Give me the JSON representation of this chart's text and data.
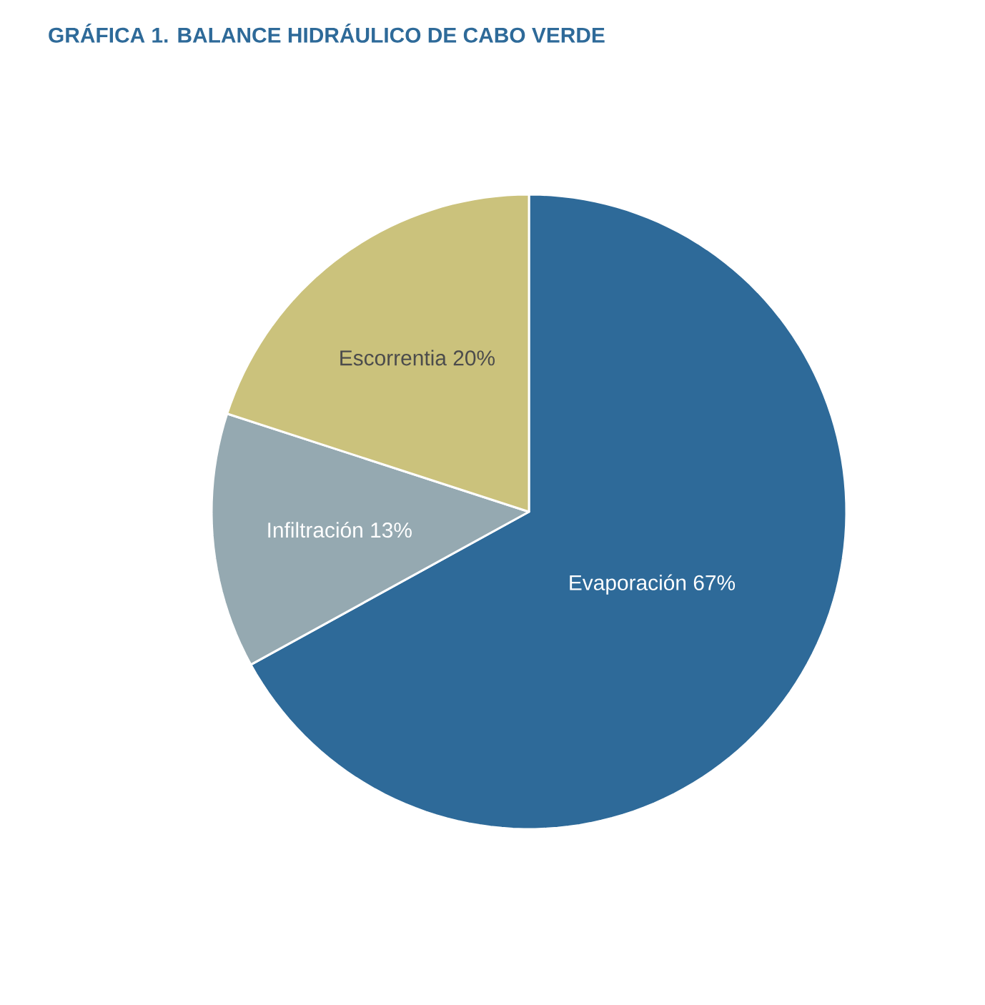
{
  "chart_data": {
    "type": "pie",
    "title": "GRÁFICA 1. BALANCE HIDRÁULICO DE CABO VERDE",
    "categories": [
      "Evaporación",
      "Infiltración",
      "Escorrentia"
    ],
    "values": [
      67,
      13,
      20
    ],
    "value_labels": [
      "67%",
      "13%",
      "20%"
    ],
    "colors": [
      "#2e6a99",
      "#95a9b1",
      "#cbc27c"
    ]
  }
}
